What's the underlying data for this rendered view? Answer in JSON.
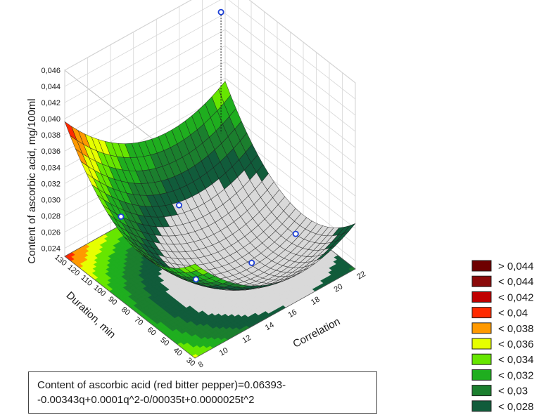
{
  "chart_data": {
    "type": "surface3d",
    "zlabel": "Content of ascorbic acid, mg/100ml",
    "xlabel": "Correlation",
    "ylabel": "Duration, min",
    "x_ticks": [
      "8",
      "10",
      "12",
      "14",
      "16",
      "18",
      "20",
      "22"
    ],
    "y_ticks": [
      "30",
      "40",
      "50",
      "60",
      "70",
      "80",
      "90",
      "100",
      "110",
      "120",
      "130"
    ],
    "z_ticks": [
      "0,024",
      "0,026",
      "0,028",
      "0,030",
      "0,032",
      "0,034",
      "0,036",
      "0,038",
      "0,040",
      "0,042",
      "0,044",
      "0,046"
    ],
    "x_range": [
      8,
      22
    ],
    "y_range": [
      30,
      130
    ],
    "z_range": [
      0.023,
      0.046
    ],
    "equation": {
      "line1": "Content of ascorbic acid (red bitter pepper)=0.06393-",
      "line2": "-0.00343q+0.0001q^2-0/00035t+0.0000025t^2"
    },
    "legend": [
      {
        "label": "> 0,044",
        "color": "#6e0000"
      },
      {
        "label": "< 0,044",
        "color": "#8b0a0a"
      },
      {
        "label": "< 0,042",
        "color": "#c00000"
      },
      {
        "label": "< 0,04",
        "color": "#ff2a00"
      },
      {
        "label": "< 0,038",
        "color": "#ff9900"
      },
      {
        "label": "< 0,036",
        "color": "#e6ff00"
      },
      {
        "label": "< 0,034",
        "color": "#66e600"
      },
      {
        "label": "< 0,032",
        "color": "#1fae1f"
      },
      {
        "label": "< 0,03",
        "color": "#1b7f2e"
      },
      {
        "label": "< 0,028",
        "color": "#115c3b"
      }
    ],
    "points": [
      {
        "x": 20.5,
        "y": 120,
        "z": 0.0446
      },
      {
        "x": 9.5,
        "y": 100,
        "z": 0.0305
      },
      {
        "x": 14,
        "y": 95,
        "z": 0.029
      },
      {
        "x": 11.5,
        "y": 60,
        "z": 0.0262
      },
      {
        "x": 15,
        "y": 48,
        "z": 0.027
      },
      {
        "x": 18.5,
        "y": 45,
        "z": 0.0282
      }
    ]
  }
}
